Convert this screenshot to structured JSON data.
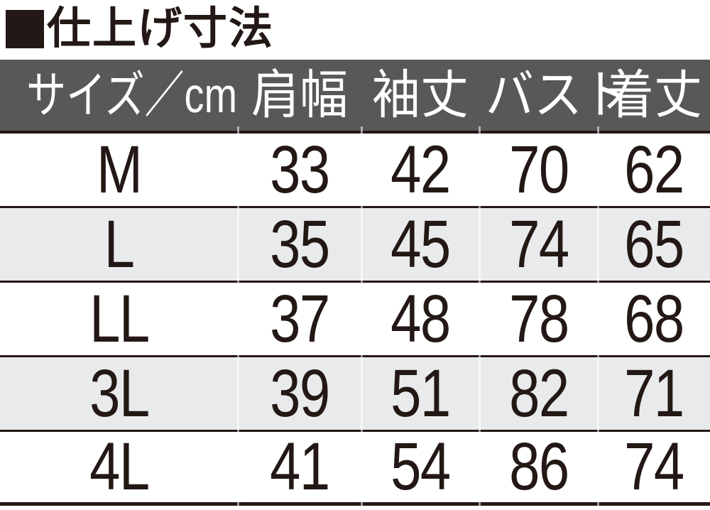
{
  "title": {
    "square_icon": "black-square",
    "text": "仕上げ寸法"
  },
  "table": {
    "header": {
      "size": "サイズ／cm",
      "shoulder": "肩幅",
      "sleeve": "袖丈",
      "bust": "バスト",
      "length": "着丈"
    },
    "rows": [
      {
        "size": "M",
        "shoulder": "33",
        "sleeve": "42",
        "bust": "70",
        "length": "62"
      },
      {
        "size": "L",
        "shoulder": "35",
        "sleeve": "45",
        "bust": "74",
        "length": "65"
      },
      {
        "size": "LL",
        "shoulder": "37",
        "sleeve": "48",
        "bust": "78",
        "length": "68"
      },
      {
        "size": "3L",
        "shoulder": "39",
        "sleeve": "51",
        "bust": "82",
        "length": "71"
      },
      {
        "size": "4L",
        "shoulder": "41",
        "sleeve": "54",
        "bust": "86",
        "length": "74"
      }
    ]
  },
  "colors": {
    "ink": "#231815",
    "header_bg": "#595757",
    "header_text": "#ffffff",
    "alt_row_bg": "#e9eaeb",
    "row_bg": "#ffffff"
  },
  "chart_data": {
    "type": "table",
    "title": "仕上げ寸法",
    "unit": "cm",
    "columns": [
      "サイズ／cm",
      "肩幅",
      "袖丈",
      "バスト",
      "着丈"
    ],
    "rows": [
      [
        "M",
        33,
        42,
        70,
        62
      ],
      [
        "L",
        35,
        45,
        74,
        65
      ],
      [
        "LL",
        37,
        48,
        78,
        68
      ],
      [
        "3L",
        39,
        51,
        82,
        71
      ],
      [
        "4L",
        41,
        54,
        86,
        74
      ]
    ]
  }
}
